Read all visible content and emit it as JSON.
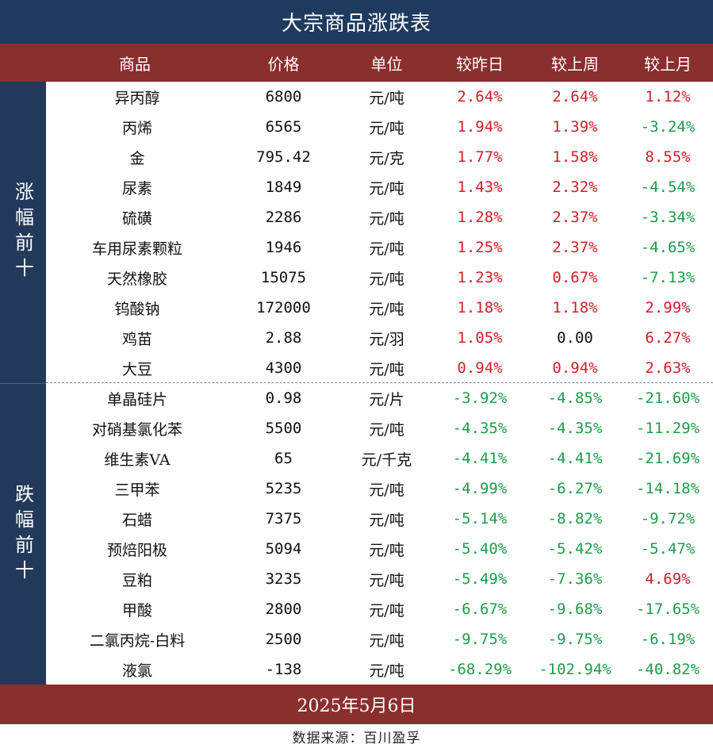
{
  "title": "大宗商品涨跌表",
  "headers": [
    "商品",
    "价格",
    "单位",
    "较昨日",
    "较上周",
    "较上月"
  ],
  "sections": {
    "up_label": "涨幅前十",
    "down_label": "跌幅前十"
  },
  "rows": [
    {
      "name": "异丙醇",
      "price": "6800",
      "unit": "元/吨",
      "day": "2.64%",
      "week": "2.64%",
      "month": "1.12%",
      "day_dir": "up",
      "week_dir": "up",
      "month_dir": "up"
    },
    {
      "name": "丙烯",
      "price": "6565",
      "unit": "元/吨",
      "day": "1.94%",
      "week": "1.39%",
      "month": "-3.24%",
      "day_dir": "up",
      "week_dir": "up",
      "month_dir": "down"
    },
    {
      "name": "金",
      "price": "795.42",
      "unit": "元/克",
      "day": "1.77%",
      "week": "1.58%",
      "month": "8.55%",
      "day_dir": "up",
      "week_dir": "up",
      "month_dir": "up"
    },
    {
      "name": "尿素",
      "price": "1849",
      "unit": "元/吨",
      "day": "1.43%",
      "week": "2.32%",
      "month": "-4.54%",
      "day_dir": "up",
      "week_dir": "up",
      "month_dir": "down"
    },
    {
      "name": "硫磺",
      "price": "2286",
      "unit": "元/吨",
      "day": "1.28%",
      "week": "2.37%",
      "month": "-3.34%",
      "day_dir": "up",
      "week_dir": "up",
      "month_dir": "down"
    },
    {
      "name": "车用尿素颗粒",
      "price": "1946",
      "unit": "元/吨",
      "day": "1.25%",
      "week": "2.37%",
      "month": "-4.65%",
      "day_dir": "up",
      "week_dir": "up",
      "month_dir": "down"
    },
    {
      "name": "天然橡胶",
      "price": "15075",
      "unit": "元/吨",
      "day": "1.23%",
      "week": "0.67%",
      "month": "-7.13%",
      "day_dir": "up",
      "week_dir": "up",
      "month_dir": "down"
    },
    {
      "name": "钨酸钠",
      "price": "172000",
      "unit": "元/吨",
      "day": "1.18%",
      "week": "1.18%",
      "month": "2.99%",
      "day_dir": "up",
      "week_dir": "up",
      "month_dir": "up"
    },
    {
      "name": "鸡苗",
      "price": "2.88",
      "unit": "元/羽",
      "day": "1.05%",
      "week": "0.00",
      "month": "6.27%",
      "day_dir": "up",
      "week_dir": "flat",
      "month_dir": "up"
    },
    {
      "name": "大豆",
      "price": "4300",
      "unit": "元/吨",
      "day": "0.94%",
      "week": "0.94%",
      "month": "2.63%",
      "day_dir": "up",
      "week_dir": "up",
      "month_dir": "up"
    },
    {
      "name": "单晶硅片",
      "price": "0.98",
      "unit": "元/片",
      "day": "-3.92%",
      "week": "-4.85%",
      "month": "-21.60%",
      "day_dir": "down",
      "week_dir": "down",
      "month_dir": "down"
    },
    {
      "name": "对硝基氯化苯",
      "price": "5500",
      "unit": "元/吨",
      "day": "-4.35%",
      "week": "-4.35%",
      "month": "-11.29%",
      "day_dir": "down",
      "week_dir": "down",
      "month_dir": "down"
    },
    {
      "name": "维生素VA",
      "price": "65",
      "unit": "元/千克",
      "day": "-4.41%",
      "week": "-4.41%",
      "month": "-21.69%",
      "day_dir": "down",
      "week_dir": "down",
      "month_dir": "down"
    },
    {
      "name": "三甲苯",
      "price": "5235",
      "unit": "元/吨",
      "day": "-4.99%",
      "week": "-6.27%",
      "month": "-14.18%",
      "day_dir": "down",
      "week_dir": "down",
      "month_dir": "down"
    },
    {
      "name": "石蜡",
      "price": "7375",
      "unit": "元/吨",
      "day": "-5.14%",
      "week": "-8.82%",
      "month": "-9.72%",
      "day_dir": "down",
      "week_dir": "down",
      "month_dir": "down"
    },
    {
      "name": "预焙阳极",
      "price": "5094",
      "unit": "元/吨",
      "day": "-5.40%",
      "week": "-5.42%",
      "month": "-5.47%",
      "day_dir": "down",
      "week_dir": "down",
      "month_dir": "down"
    },
    {
      "name": "豆粕",
      "price": "3235",
      "unit": "元/吨",
      "day": "-5.49%",
      "week": "-7.36%",
      "month": "4.69%",
      "day_dir": "down",
      "week_dir": "down",
      "month_dir": "up"
    },
    {
      "name": "甲酸",
      "price": "2800",
      "unit": "元/吨",
      "day": "-6.67%",
      "week": "-9.68%",
      "month": "-17.65%",
      "day_dir": "down",
      "week_dir": "down",
      "month_dir": "down"
    },
    {
      "name": "二氯丙烷-白料",
      "price": "2500",
      "unit": "元/吨",
      "day": "-9.75%",
      "week": "-9.75%",
      "month": "-6.19%",
      "day_dir": "down",
      "week_dir": "down",
      "month_dir": "down"
    },
    {
      "name": "液氯",
      "price": "-138",
      "unit": "元/吨",
      "day": "-68.29%",
      "week": "-102.94%",
      "month": "-40.82%",
      "day_dir": "down",
      "week_dir": "down",
      "month_dir": "down"
    }
  ],
  "date": "2025年5月6日",
  "source": "数据来源：百川盈孚",
  "colors": {
    "title_bg": "#1f3a5f",
    "header_bg": "#8b2e2e",
    "up": "#d0202a",
    "down": "#1f9d4a"
  }
}
